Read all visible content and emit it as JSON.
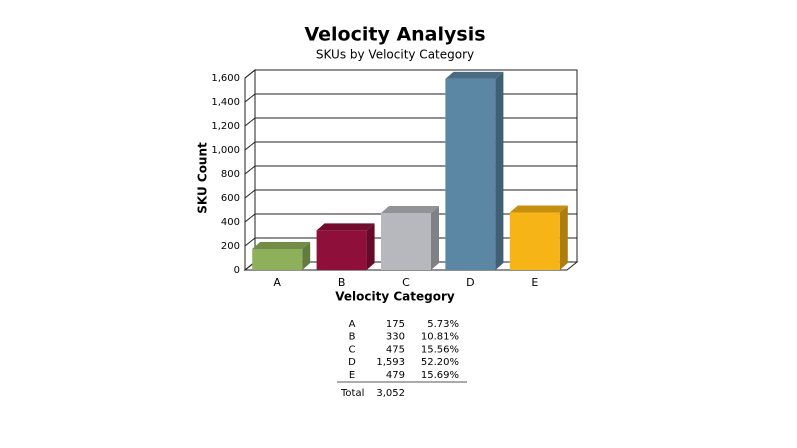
{
  "chart_data": {
    "type": "bar3d",
    "title": "Velocity Analysis",
    "subtitle": "SKUs by Velocity Category",
    "x_label": "Velocity Category",
    "y_label": "SKU Count",
    "categories": [
      "A",
      "B",
      "C",
      "D",
      "E"
    ],
    "values": [
      175,
      330,
      475,
      1593,
      479
    ],
    "value_labels": [
      "175",
      "330",
      "475",
      "1,593",
      "479"
    ],
    "colors": [
      "#8fb05a",
      "#8e0f3a",
      "#b7b8bd",
      "#5b87a5",
      "#f6b417"
    ],
    "ylim": [
      0,
      1600
    ],
    "yticks": [
      0,
      200,
      400,
      600,
      800,
      {
        "value": 1000,
        "label": "1,000"
      },
      {
        "value": 1200,
        "label": "1,200"
      },
      {
        "value": 1400,
        "label": "1,400"
      },
      {
        "value": 1600,
        "label": "1,600"
      }
    ],
    "grid": true
  },
  "table": {
    "percentages": [
      "5.73%",
      "10.81%",
      "15.56%",
      "52.20%",
      "15.69%"
    ],
    "total_label": "Total",
    "total": "3,052"
  }
}
